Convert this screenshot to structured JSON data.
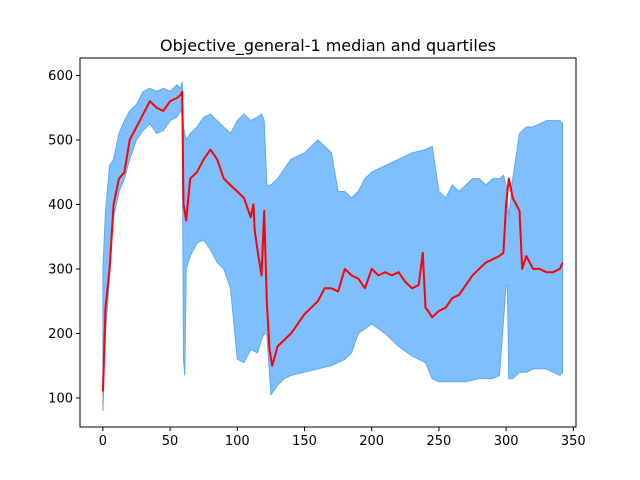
{
  "chart_data": {
    "type": "area",
    "title": "Objective_general-1 median and quartiles",
    "xlabel": "",
    "ylabel": "",
    "xlim": [
      -17,
      352
    ],
    "ylim": [
      55,
      627
    ],
    "xticks": [
      0,
      50,
      100,
      150,
      200,
      250,
      300,
      350
    ],
    "yticks": [
      100,
      200,
      300,
      400,
      500,
      600
    ],
    "grid": false,
    "legend": "none",
    "colors": {
      "median": "#ff0000",
      "band": "#7fbfff",
      "band_edge": "#5aa9f0"
    },
    "median": {
      "x": [
        0,
        2,
        5,
        8,
        12,
        16,
        20,
        25,
        30,
        35,
        40,
        45,
        50,
        55,
        58,
        59,
        60,
        62,
        65,
        70,
        75,
        80,
        85,
        90,
        95,
        100,
        105,
        110,
        112,
        113,
        115,
        118,
        120,
        122,
        124,
        126,
        130,
        135,
        140,
        145,
        150,
        155,
        160,
        165,
        170,
        175,
        180,
        185,
        190,
        195,
        200,
        205,
        210,
        215,
        220,
        225,
        230,
        235,
        238,
        240,
        242,
        245,
        250,
        255,
        260,
        265,
        270,
        275,
        280,
        285,
        290,
        295,
        298,
        300,
        302,
        305,
        310,
        312,
        315,
        320,
        325,
        330,
        335,
        340,
        342
      ],
      "y": [
        110,
        240,
        300,
        400,
        440,
        450,
        500,
        520,
        540,
        560,
        550,
        545,
        560,
        565,
        570,
        575,
        400,
        375,
        440,
        450,
        470,
        485,
        470,
        440,
        430,
        420,
        410,
        380,
        400,
        360,
        330,
        290,
        390,
        250,
        175,
        150,
        180,
        190,
        200,
        215,
        230,
        240,
        250,
        270,
        270,
        265,
        300,
        290,
        285,
        270,
        300,
        290,
        295,
        290,
        295,
        280,
        270,
        275,
        325,
        240,
        235,
        225,
        235,
        240,
        255,
        260,
        275,
        290,
        300,
        310,
        315,
        320,
        325,
        400,
        440,
        410,
        390,
        300,
        320,
        300,
        300,
        295,
        295,
        300,
        310
      ]
    },
    "upper_quartile": {
      "x": [
        0,
        2,
        5,
        8,
        12,
        16,
        20,
        25,
        30,
        35,
        40,
        45,
        50,
        55,
        58,
        59,
        60,
        62,
        65,
        70,
        75,
        80,
        85,
        90,
        95,
        100,
        105,
        110,
        115,
        118,
        120,
        122,
        125,
        130,
        140,
        150,
        160,
        170,
        175,
        180,
        185,
        190,
        195,
        200,
        210,
        220,
        230,
        240,
        245,
        250,
        255,
        260,
        265,
        270,
        275,
        280,
        285,
        290,
        295,
        298,
        300,
        302,
        305,
        310,
        315,
        320,
        325,
        330,
        335,
        340,
        342
      ],
      "y": [
        300,
        390,
        460,
        470,
        510,
        530,
        545,
        555,
        575,
        580,
        575,
        580,
        575,
        585,
        580,
        590,
        520,
        500,
        510,
        520,
        535,
        540,
        530,
        520,
        510,
        530,
        540,
        530,
        535,
        540,
        530,
        430,
        430,
        440,
        470,
        480,
        500,
        480,
        420,
        420,
        410,
        420,
        440,
        450,
        460,
        470,
        480,
        485,
        490,
        420,
        410,
        430,
        420,
        430,
        440,
        440,
        430,
        440,
        440,
        445,
        430,
        380,
        440,
        510,
        520,
        520,
        525,
        530,
        530,
        530,
        525
      ]
    },
    "lower_quartile": {
      "x": [
        0,
        2,
        5,
        8,
        12,
        16,
        20,
        25,
        30,
        35,
        40,
        45,
        50,
        55,
        58,
        59,
        60,
        61,
        62,
        65,
        70,
        75,
        80,
        85,
        90,
        95,
        100,
        105,
        110,
        115,
        118,
        120,
        122,
        125,
        130,
        135,
        140,
        150,
        160,
        170,
        180,
        185,
        190,
        200,
        210,
        220,
        230,
        235,
        240,
        245,
        250,
        260,
        270,
        280,
        290,
        295,
        300,
        301,
        302,
        305,
        310,
        315,
        320,
        325,
        330,
        335,
        340,
        342
      ],
      "y": [
        80,
        200,
        290,
        380,
        420,
        440,
        470,
        500,
        515,
        525,
        510,
        515,
        530,
        535,
        545,
        540,
        160,
        135,
        300,
        320,
        340,
        345,
        330,
        310,
        300,
        270,
        160,
        155,
        175,
        170,
        190,
        200,
        200,
        105,
        120,
        130,
        135,
        140,
        145,
        150,
        160,
        170,
        200,
        215,
        200,
        180,
        165,
        160,
        155,
        130,
        125,
        125,
        125,
        130,
        130,
        135,
        275,
        275,
        130,
        130,
        140,
        140,
        145,
        145,
        145,
        140,
        135,
        140
      ]
    }
  }
}
